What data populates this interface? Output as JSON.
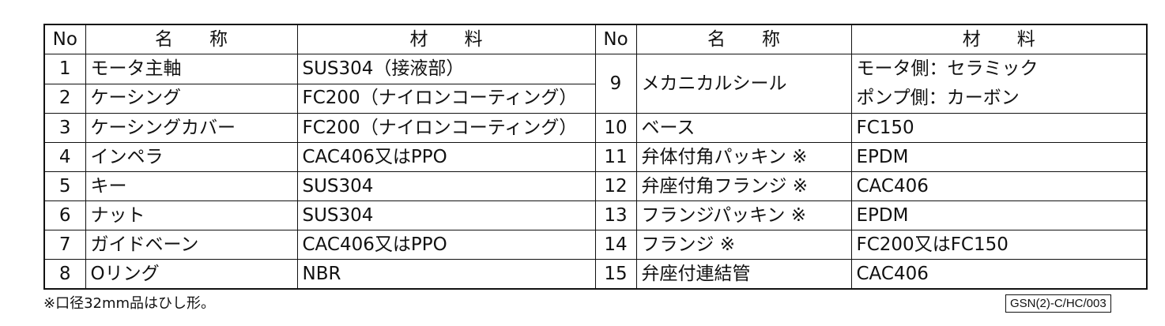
{
  "headers": {
    "no": "No",
    "name": "名　　称",
    "material": "材　　料"
  },
  "left_rows": [
    {
      "no": "1",
      "name": "モータ主軸",
      "material": "SUS304（接液部）"
    },
    {
      "no": "2",
      "name": "ケーシング",
      "material": "FC200（ナイロンコーティング）"
    },
    {
      "no": "3",
      "name": "ケーシングカバー",
      "material": "FC200（ナイロンコーティング）"
    },
    {
      "no": "4",
      "name": "インペラ",
      "material": "CAC406又はPPO"
    },
    {
      "no": "5",
      "name": "キー",
      "material": "SUS304"
    },
    {
      "no": "6",
      "name": "ナット",
      "material": "SUS304"
    },
    {
      "no": "7",
      "name": "ガイドベーン",
      "material": "CAC406又はPPO"
    },
    {
      "no": "8",
      "name": "Oリング",
      "material": "NBR"
    }
  ],
  "seal_row": {
    "no": "9",
    "name": "メカニカルシール",
    "material_1": "モータ側：セラミック",
    "material_2": "ポンプ側：カーボン"
  },
  "right_rows": [
    {
      "no": "10",
      "name": "ベース",
      "material": "FC150"
    },
    {
      "no": "11",
      "name": "弁体付角パッキン ※",
      "material": "EPDM"
    },
    {
      "no": "12",
      "name": "弁座付角フランジ ※",
      "material": "CAC406"
    },
    {
      "no": "13",
      "name": "フランジパッキン ※",
      "material": "EPDM"
    },
    {
      "no": "14",
      "name": "フランジ ※",
      "material": "FC200又はFC150"
    },
    {
      "no": "15",
      "name": "弁座付連結管",
      "material": "CAC406"
    }
  ],
  "footnote": "※口径32mm品はひし形。",
  "doc_code": "GSN(2)-C/HC/003"
}
